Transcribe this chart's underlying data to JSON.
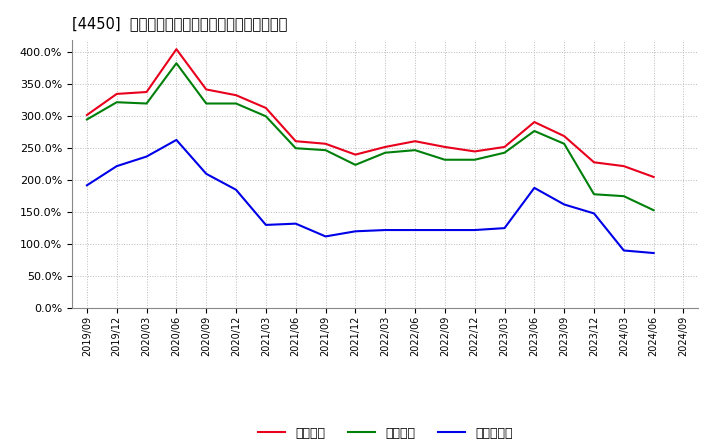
{
  "title": "[4450]  流動比率、当座比率、現預金比率の推移",
  "x_labels": [
    "2019/09",
    "2019/12",
    "2020/03",
    "2020/06",
    "2020/09",
    "2020/12",
    "2021/03",
    "2021/06",
    "2021/09",
    "2021/12",
    "2022/03",
    "2022/06",
    "2022/09",
    "2022/12",
    "2023/03",
    "2023/06",
    "2023/09",
    "2023/12",
    "2024/03",
    "2024/06",
    "2024/09"
  ],
  "ryudo": [
    302,
    335,
    338,
    405,
    342,
    333,
    313,
    261,
    257,
    240,
    252,
    261,
    252,
    245,
    252,
    291,
    269,
    228,
    222,
    205,
    null
  ],
  "toza": [
    295,
    322,
    320,
    383,
    320,
    320,
    300,
    250,
    247,
    224,
    243,
    247,
    232,
    232,
    243,
    277,
    257,
    178,
    175,
    153,
    null
  ],
  "genyo": [
    192,
    222,
    237,
    263,
    210,
    185,
    130,
    132,
    112,
    120,
    122,
    122,
    122,
    122,
    125,
    188,
    162,
    148,
    90,
    86,
    null
  ],
  "ryudo_color": "#e8001c",
  "toza_color": "#00800a",
  "genyo_color": "#0000e8",
  "ylim": [
    0,
    420
  ],
  "yticks": [
    0,
    50,
    100,
    150,
    200,
    250,
    300,
    350,
    400
  ],
  "legend_labels": [
    "流動比率",
    "当座比率",
    "現預金比率"
  ],
  "bg_color": "#ffffff",
  "grid_color": "#aaaaaa",
  "title_bracket": "[4450]",
  "title_rest": "流動比率、当座比率、現預金比率の推移"
}
